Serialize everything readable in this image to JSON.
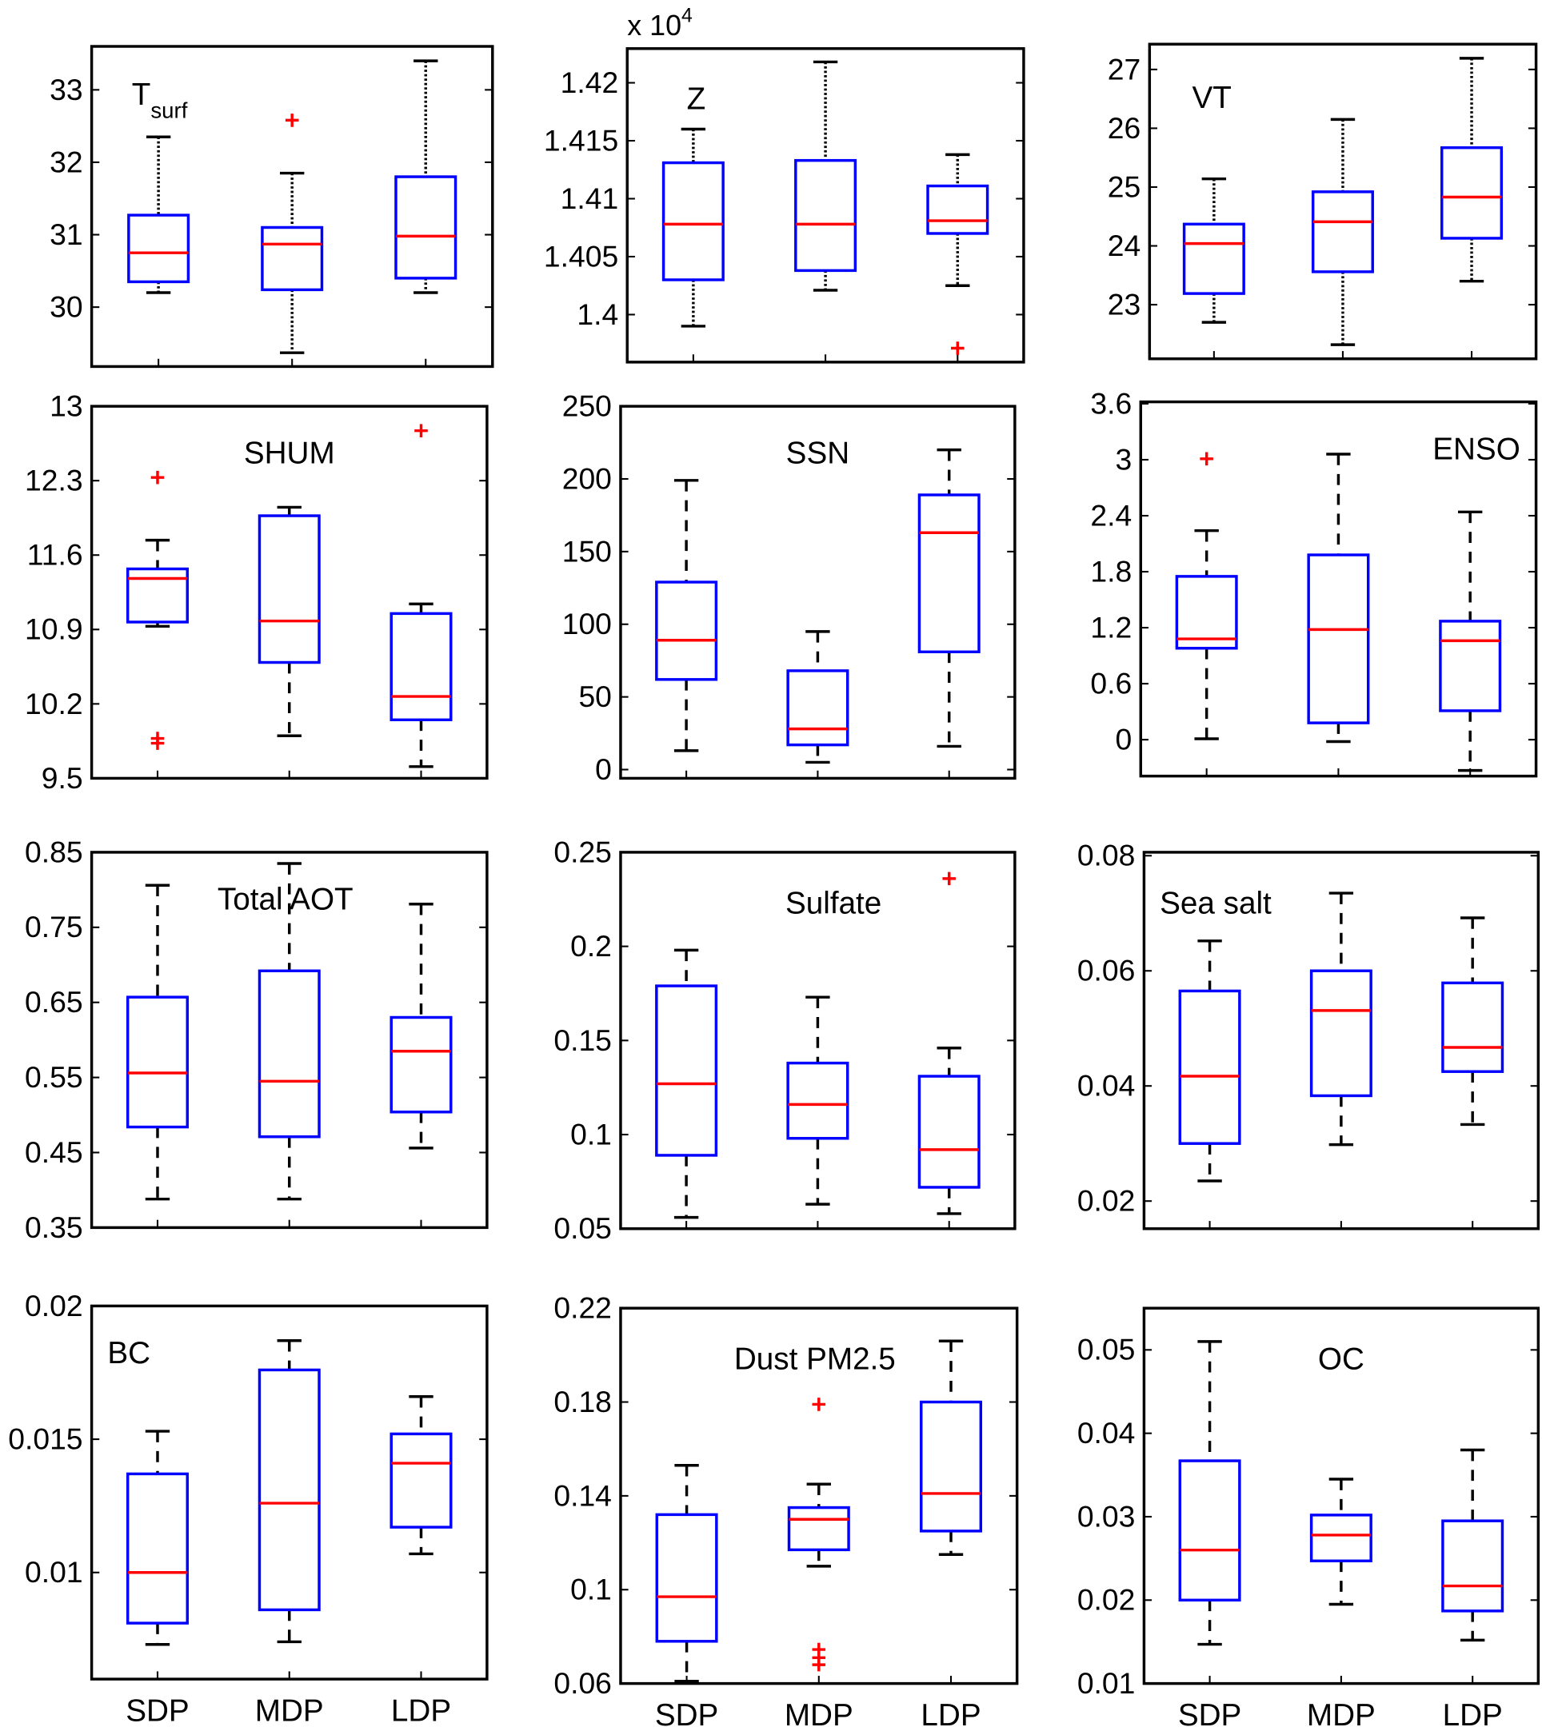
{
  "colors": {
    "box": "#0000ff",
    "median": "#ff0000",
    "outlier": "#ff0000",
    "whisker": "#000000",
    "axis": "#000000"
  },
  "chart_data": [
    {
      "type": "box",
      "title": "T",
      "title_sub": "surf",
      "categories": [
        "SDP",
        "MDP",
        "LDP"
      ],
      "ylim": [
        29.18,
        33.6
      ],
      "yticks": [
        "30",
        "31",
        "32",
        "33"
      ],
      "whisker_style": "dotted",
      "boxes": [
        {
          "whisker_low": 30.2,
          "q1": 30.35,
          "median": 30.75,
          "q3": 31.27,
          "whisker_high": 32.35,
          "outliers": []
        },
        {
          "whisker_low": 29.37,
          "q1": 30.24,
          "median": 30.87,
          "q3": 31.1,
          "whisker_high": 31.85,
          "outliers": [
            32.58
          ]
        },
        {
          "whisker_low": 30.2,
          "q1": 30.4,
          "median": 30.98,
          "q3": 31.8,
          "whisker_high": 33.4,
          "outliers": []
        }
      ]
    },
    {
      "type": "box",
      "title": "Z",
      "exponent_label": "x 10",
      "exponent_power": "4",
      "categories": [
        "SDP",
        "MDP",
        "LDP"
      ],
      "ylim": [
        1.3959,
        1.42295
      ],
      "yticks": [
        "1.4",
        "1.405",
        "1.41",
        "1.415",
        "1.42"
      ],
      "whisker_style": "dotted",
      "boxes": [
        {
          "whisker_low": 1.399,
          "q1": 1.403,
          "median": 1.4078,
          "q3": 1.4131,
          "whisker_high": 1.416,
          "outliers": []
        },
        {
          "whisker_low": 1.4021,
          "q1": 1.4038,
          "median": 1.4078,
          "q3": 1.4133,
          "whisker_high": 1.4218,
          "outliers": []
        },
        {
          "whisker_low": 1.4025,
          "q1": 1.407,
          "median": 1.4081,
          "q3": 1.4111,
          "whisker_high": 1.4138,
          "outliers": [
            1.3971
          ]
        }
      ]
    },
    {
      "type": "box",
      "title": "VT",
      "categories": [
        "SDP",
        "MDP",
        "LDP"
      ],
      "ylim": [
        22.08,
        27.43
      ],
      "yticks": [
        "23",
        "24",
        "25",
        "26",
        "27"
      ],
      "whisker_style": "dotted",
      "boxes": [
        {
          "whisker_low": 22.7,
          "q1": 23.19,
          "median": 24.04,
          "q3": 24.37,
          "whisker_high": 25.14,
          "outliers": []
        },
        {
          "whisker_low": 22.32,
          "q1": 23.56,
          "median": 24.41,
          "q3": 24.92,
          "whisker_high": 26.15,
          "outliers": []
        },
        {
          "whisker_low": 23.4,
          "q1": 24.13,
          "median": 24.83,
          "q3": 25.67,
          "whisker_high": 27.19,
          "outliers": []
        }
      ]
    },
    {
      "type": "box",
      "title": "SHUM",
      "categories": [
        "SDP",
        "MDP",
        "LDP"
      ],
      "ylim": [
        9.5,
        13
      ],
      "yticks": [
        "9.5",
        "10.2",
        "10.9",
        "11.6",
        "12.3",
        "13"
      ],
      "whisker_style": "dashed",
      "boxes": [
        {
          "whisker_low": 10.93,
          "q1": 10.97,
          "median": 11.38,
          "q3": 11.47,
          "whisker_high": 11.74,
          "outliers": [
            12.33,
            9.875,
            9.83
          ]
        },
        {
          "whisker_low": 9.9,
          "q1": 10.59,
          "median": 10.98,
          "q3": 11.97,
          "whisker_high": 12.05,
          "outliers": []
        },
        {
          "whisker_low": 9.61,
          "q1": 10.05,
          "median": 10.27,
          "q3": 11.05,
          "whisker_high": 11.14,
          "outliers": [
            12.77
          ]
        }
      ]
    },
    {
      "type": "box",
      "title": "SSN",
      "categories": [
        "SDP",
        "MDP",
        "LDP"
      ],
      "ylim": [
        -6,
        250
      ],
      "yticks": [
        "0",
        "50",
        "100",
        "150",
        "200",
        "250"
      ],
      "whisker_style": "dashed",
      "boxes": [
        {
          "whisker_low": 13,
          "q1": 62,
          "median": 89,
          "q3": 129,
          "whisker_high": 199,
          "outliers": []
        },
        {
          "whisker_low": 5,
          "q1": 17,
          "median": 28,
          "q3": 68,
          "whisker_high": 95,
          "outliers": []
        },
        {
          "whisker_low": 16,
          "q1": 81,
          "median": 163,
          "q3": 189,
          "whisker_high": 220,
          "outliers": []
        }
      ]
    },
    {
      "type": "box",
      "title": "ENSO",
      "categories": [
        "SDP",
        "MDP",
        "LDP"
      ],
      "ylim": [
        -0.39,
        3.62
      ],
      "yticks": [
        "0",
        "0.6",
        "1.2",
        "1.8",
        "2.4",
        "3",
        "3.6"
      ],
      "whisker_style": "dashed",
      "boxes": [
        {
          "whisker_low": 0.01,
          "q1": 0.98,
          "median": 1.08,
          "q3": 1.75,
          "whisker_high": 2.24,
          "outliers": [
            3.01
          ]
        },
        {
          "whisker_low": -0.02,
          "q1": 0.18,
          "median": 1.18,
          "q3": 1.98,
          "whisker_high": 3.06,
          "outliers": []
        },
        {
          "whisker_low": -0.33,
          "q1": 0.31,
          "median": 1.06,
          "q3": 1.27,
          "whisker_high": 2.44,
          "outliers": []
        }
      ]
    },
    {
      "type": "box",
      "title": "Total AOT",
      "categories": [
        "SDP",
        "MDP",
        "LDP"
      ],
      "ylim": [
        0.35,
        0.85
      ],
      "yticks": [
        "0.35",
        "0.45",
        "0.55",
        "0.65",
        "0.75",
        "0.85"
      ],
      "whisker_style": "dashed",
      "boxes": [
        {
          "whisker_low": 0.388,
          "q1": 0.484,
          "median": 0.556,
          "q3": 0.657,
          "whisker_high": 0.806,
          "outliers": []
        },
        {
          "whisker_low": 0.388,
          "q1": 0.471,
          "median": 0.545,
          "q3": 0.692,
          "whisker_high": 0.835,
          "outliers": []
        },
        {
          "whisker_low": 0.456,
          "q1": 0.504,
          "median": 0.585,
          "q3": 0.63,
          "whisker_high": 0.781,
          "outliers": []
        }
      ]
    },
    {
      "type": "box",
      "title": "Sulfate",
      "categories": [
        "SDP",
        "MDP",
        "LDP"
      ],
      "ylim": [
        0.05,
        0.25
      ],
      "yticks": [
        "0.05",
        "0.1",
        "0.15",
        "0.2",
        "0.25"
      ],
      "whisker_style": "dashed",
      "boxes": [
        {
          "whisker_low": 0.056,
          "q1": 0.089,
          "median": 0.127,
          "q3": 0.179,
          "whisker_high": 0.198,
          "outliers": []
        },
        {
          "whisker_low": 0.063,
          "q1": 0.098,
          "median": 0.116,
          "q3": 0.138,
          "whisker_high": 0.173,
          "outliers": []
        },
        {
          "whisker_low": 0.058,
          "q1": 0.072,
          "median": 0.092,
          "q3": 0.131,
          "whisker_high": 0.146,
          "outliers": [
            0.236
          ]
        }
      ]
    },
    {
      "type": "box",
      "title": "Sea salt",
      "categories": [
        "SDP",
        "MDP",
        "LDP"
      ],
      "ylim": [
        0.0152,
        0.0806
      ],
      "yticks": [
        "0.02",
        "0.04",
        "0.06",
        "0.08"
      ],
      "whisker_style": "dashed",
      "boxes": [
        {
          "whisker_low": 0.0235,
          "q1": 0.03,
          "median": 0.0417,
          "q3": 0.0565,
          "whisker_high": 0.0652,
          "outliers": []
        },
        {
          "whisker_low": 0.0298,
          "q1": 0.0383,
          "median": 0.0531,
          "q3": 0.06,
          "whisker_high": 0.0735,
          "outliers": []
        },
        {
          "whisker_low": 0.0333,
          "q1": 0.0425,
          "median": 0.0467,
          "q3": 0.0579,
          "whisker_high": 0.0692,
          "outliers": []
        }
      ]
    },
    {
      "type": "box",
      "title": "BC",
      "categories": [
        "SDP",
        "MDP",
        "LDP"
      ],
      "ylim": [
        0.006,
        0.02
      ],
      "yticks": [
        "0.01",
        "0.015",
        "0.02"
      ],
      "whisker_style": "dashed",
      "show_xlabels": true,
      "boxes": [
        {
          "whisker_low": 0.0073,
          "q1": 0.0081,
          "median": 0.01,
          "q3": 0.0137,
          "whisker_high": 0.0153,
          "outliers": []
        },
        {
          "whisker_low": 0.0074,
          "q1": 0.0086,
          "median": 0.0126,
          "q3": 0.0176,
          "whisker_high": 0.0187,
          "outliers": []
        },
        {
          "whisker_low": 0.0107,
          "q1": 0.0117,
          "median": 0.0141,
          "q3": 0.0152,
          "whisker_high": 0.0166,
          "outliers": []
        }
      ]
    },
    {
      "type": "box",
      "title": "Dust PM2.5",
      "categories": [
        "SDP",
        "MDP",
        "LDP"
      ],
      "ylim": [
        0.06,
        0.22
      ],
      "yticks": [
        "0.06",
        "0.1",
        "0.14",
        "0.18",
        "0.22"
      ],
      "whisker_style": "dashed",
      "show_xlabels": true,
      "boxes": [
        {
          "whisker_low": 0.061,
          "q1": 0.078,
          "median": 0.097,
          "q3": 0.132,
          "whisker_high": 0.153,
          "outliers": []
        },
        {
          "whisker_low": 0.11,
          "q1": 0.117,
          "median": 0.13,
          "q3": 0.135,
          "whisker_high": 0.145,
          "outliers": [
            0.179,
            0.0745,
            0.071,
            0.068
          ]
        },
        {
          "whisker_low": 0.115,
          "q1": 0.125,
          "median": 0.141,
          "q3": 0.18,
          "whisker_high": 0.206,
          "outliers": []
        }
      ]
    },
    {
      "type": "box",
      "title": "OC",
      "categories": [
        "SDP",
        "MDP",
        "LDP"
      ],
      "ylim": [
        0.01,
        0.055
      ],
      "yticks": [
        "0.01",
        "0.02",
        "0.03",
        "0.04",
        "0.05"
      ],
      "whisker_style": "dashed",
      "show_xlabels": true,
      "boxes": [
        {
          "whisker_low": 0.0147,
          "q1": 0.02,
          "median": 0.026,
          "q3": 0.0367,
          "whisker_high": 0.051,
          "outliers": []
        },
        {
          "whisker_low": 0.0195,
          "q1": 0.0247,
          "median": 0.0278,
          "q3": 0.0302,
          "whisker_high": 0.0345,
          "outliers": []
        },
        {
          "whisker_low": 0.0152,
          "q1": 0.0187,
          "median": 0.0217,
          "q3": 0.0295,
          "whisker_high": 0.038,
          "outliers": []
        }
      ]
    }
  ]
}
